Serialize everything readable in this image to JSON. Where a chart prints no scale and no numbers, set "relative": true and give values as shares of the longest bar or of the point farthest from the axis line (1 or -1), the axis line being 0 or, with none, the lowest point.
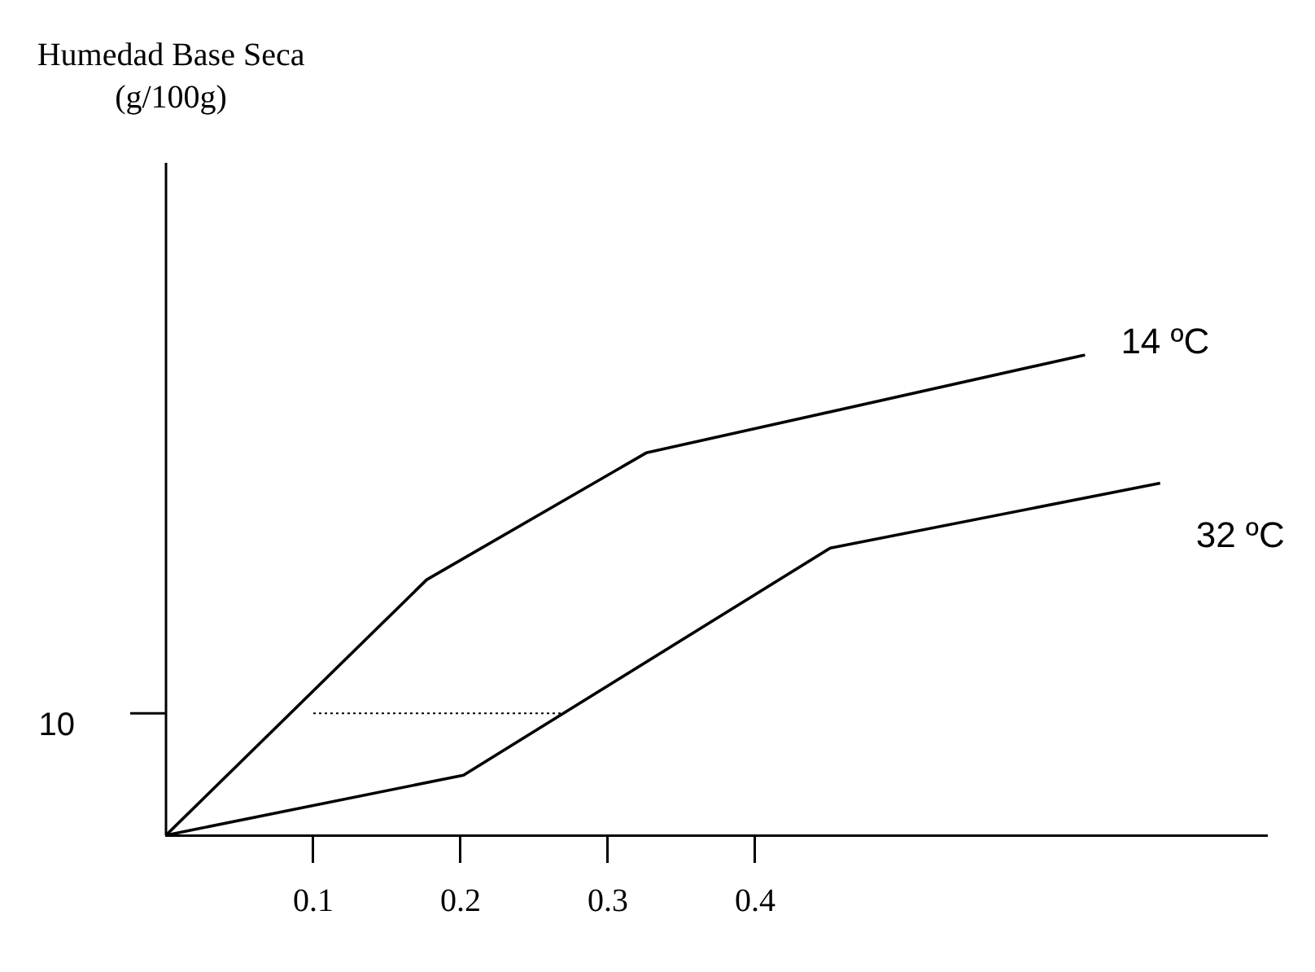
{
  "chart_data": {
    "type": "line",
    "relative": true,
    "xlim": [
      0,
      0.747
    ],
    "xticks": [
      0.1,
      0.2,
      0.3,
      0.4
    ],
    "grid": false,
    "legend": false,
    "marker": "none",
    "annotations": [
      "Humedad Base Seca (g/100g)",
      "10"
    ],
    "series": [
      {
        "name": "14 ºC",
        "color": "#000000",
        "x": [
          0,
          0.177,
          0.326,
          0.624
        ],
        "values": [
          0,
          0.532,
          0.796,
          1
        ]
      },
      {
        "name": "32 ºC",
        "color": "#000000",
        "x": [
          0,
          0.202,
          0.451,
          0.675
        ],
        "values": [
          0,
          0.125,
          0.598,
          0.733
        ]
      },
      {
        "color": "#000000",
        "line_style": "dotted",
        "x": [
          0.1,
          0.268
        ],
        "values": [
          0.254,
          0.254
        ]
      }
    ]
  }
}
